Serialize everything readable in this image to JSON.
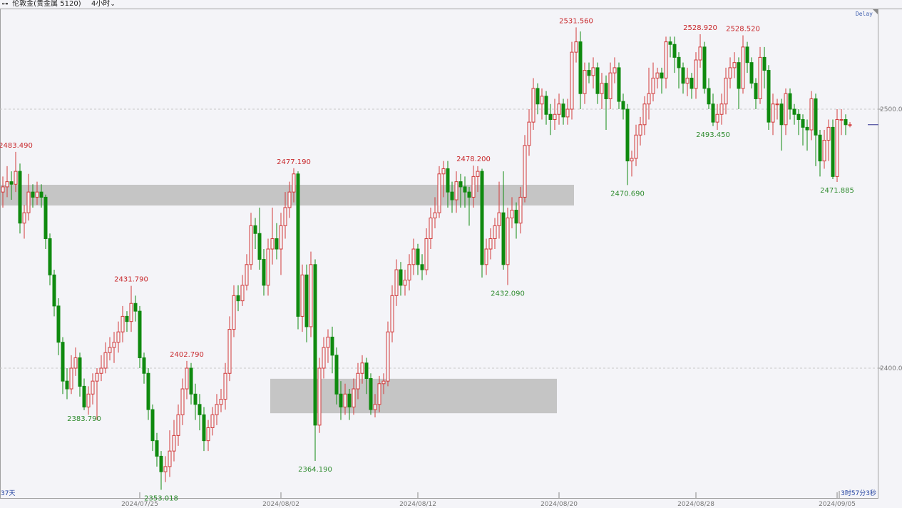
{
  "header": {
    "link_icon": "link-icon",
    "title": "伦敦金(贵金属 5120)",
    "timeframe": "4小时",
    "dropdown_icon": "chevron-down-icon"
  },
  "delay_label": "Delay",
  "days_label": "37天",
  "countdown": "3时57分3秒",
  "colors": {
    "up": "#d23a3a",
    "down": "#0f8a0f",
    "zone": "#c2c2c2",
    "grid": "#c8c8c8",
    "current_price_marker": "#2b2b8c"
  },
  "chart_data": {
    "type": "candlestick",
    "title": "",
    "ylim": [
      2345,
      2535
    ],
    "yticks": [
      {
        "value": 2500,
        "label": "2500.00"
      },
      {
        "value": 2400,
        "label": "2400.00"
      }
    ],
    "grid": "horizontal dashed at y ticks",
    "xticks": [
      {
        "index": 32,
        "label": "2024/07/25"
      },
      {
        "index": 65,
        "label": "2024/08/02"
      },
      {
        "index": 97,
        "label": "2024/08/12"
      },
      {
        "index": 130,
        "label": "2024/08/20"
      },
      {
        "index": 162,
        "label": "2024/08/28"
      },
      {
        "index": 195,
        "label": "2024/09/05"
      }
    ],
    "ohlc": [
      [
        2468,
        2474,
        2462,
        2470
      ],
      [
        2470,
        2478,
        2466,
        2472
      ],
      [
        2472,
        2476,
        2465,
        2471
      ],
      [
        2471,
        2483.49,
        2468,
        2476
      ],
      [
        2476,
        2479,
        2452,
        2456
      ],
      [
        2456,
        2463,
        2450,
        2460
      ],
      [
        2460,
        2475,
        2457,
        2468
      ],
      [
        2468,
        2471,
        2462,
        2466
      ],
      [
        2466,
        2472,
        2463,
        2468
      ],
      [
        2468,
        2471,
        2462,
        2466
      ],
      [
        2466,
        2467,
        2446,
        2450
      ],
      [
        2450,
        2452,
        2432,
        2436
      ],
      [
        2436,
        2438,
        2420,
        2424
      ],
      [
        2424,
        2427,
        2405,
        2410
      ],
      [
        2410,
        2412,
        2390,
        2395
      ],
      [
        2395,
        2400,
        2388,
        2392
      ],
      [
        2392,
        2405,
        2390,
        2400
      ],
      [
        2400,
        2408,
        2397,
        2404
      ],
      [
        2404,
        2406,
        2389,
        2393
      ],
      [
        2393,
        2396,
        2383.79,
        2385
      ],
      [
        2385,
        2393,
        2382,
        2390
      ],
      [
        2390,
        2398,
        2386,
        2395
      ],
      [
        2395,
        2400,
        2380,
        2398
      ],
      [
        2398,
        2405,
        2395,
        2400
      ],
      [
        2400,
        2410,
        2398,
        2406
      ],
      [
        2406,
        2412,
        2403,
        2408
      ],
      [
        2408,
        2414,
        2402,
        2410
      ],
      [
        2410,
        2418,
        2406,
        2414
      ],
      [
        2414,
        2424,
        2410,
        2420
      ],
      [
        2420,
        2422,
        2414,
        2418
      ],
      [
        2418,
        2431.79,
        2414,
        2425
      ],
      [
        2425,
        2428,
        2418,
        2422
      ],
      [
        2422,
        2424,
        2400,
        2404
      ],
      [
        2404,
        2406,
        2394,
        2398
      ],
      [
        2398,
        2400,
        2380,
        2384
      ],
      [
        2384,
        2386,
        2368,
        2372
      ],
      [
        2372,
        2375,
        2362,
        2366
      ],
      [
        2366,
        2368,
        2353.018,
        2360
      ],
      [
        2360,
        2366,
        2356,
        2362
      ],
      [
        2362,
        2376,
        2358,
        2368
      ],
      [
        2368,
        2380,
        2364,
        2374
      ],
      [
        2374,
        2386,
        2370,
        2382
      ],
      [
        2382,
        2396,
        2378,
        2392
      ],
      [
        2392,
        2402.79,
        2388,
        2400
      ],
      [
        2400,
        2402,
        2386,
        2390
      ],
      [
        2390,
        2394,
        2380,
        2386
      ],
      [
        2386,
        2390,
        2376,
        2382
      ],
      [
        2382,
        2385,
        2368,
        2372
      ],
      [
        2372,
        2380,
        2368,
        2377
      ],
      [
        2377,
        2385,
        2374,
        2382
      ],
      [
        2382,
        2390,
        2378,
        2386
      ],
      [
        2386,
        2392,
        2383,
        2388
      ],
      [
        2388,
        2402,
        2384,
        2398
      ],
      [
        2398,
        2420,
        2395,
        2415
      ],
      [
        2415,
        2432,
        2412,
        2428
      ],
      [
        2428,
        2432,
        2422,
        2426
      ],
      [
        2426,
        2436,
        2424,
        2432
      ],
      [
        2432,
        2444,
        2430,
        2440
      ],
      [
        2440,
        2460,
        2438,
        2455
      ],
      [
        2455,
        2458,
        2446,
        2452
      ],
      [
        2452,
        2462,
        2438,
        2442
      ],
      [
        2442,
        2446,
        2428,
        2432
      ],
      [
        2432,
        2450,
        2428,
        2446
      ],
      [
        2446,
        2462,
        2440,
        2450
      ],
      [
        2450,
        2456,
        2442,
        2446
      ],
      [
        2446,
        2460,
        2436,
        2455
      ],
      [
        2455,
        2468,
        2450,
        2462
      ],
      [
        2462,
        2472,
        2458,
        2468
      ],
      [
        2468,
        2477.19,
        2464,
        2475
      ],
      [
        2475,
        2476,
        2415,
        2420
      ],
      [
        2420,
        2440,
        2414,
        2436
      ],
      [
        2436,
        2440,
        2410,
        2416
      ],
      [
        2416,
        2445,
        2412,
        2440
      ],
      [
        2440,
        2442,
        2364.19,
        2378
      ],
      [
        2378,
        2404,
        2375,
        2400
      ],
      [
        2400,
        2412,
        2396,
        2408
      ],
      [
        2408,
        2415,
        2402,
        2412
      ],
      [
        2412,
        2416,
        2398,
        2405
      ],
      [
        2405,
        2408,
        2386,
        2390
      ],
      [
        2390,
        2395,
        2380,
        2385
      ],
      [
        2385,
        2394,
        2382,
        2390
      ],
      [
        2390,
        2392,
        2380,
        2385
      ],
      [
        2385,
        2396,
        2382,
        2392
      ],
      [
        2392,
        2402,
        2388,
        2398
      ],
      [
        2398,
        2405,
        2394,
        2402
      ],
      [
        2402,
        2404,
        2390,
        2396
      ],
      [
        2396,
        2398,
        2382,
        2384
      ],
      [
        2384,
        2390,
        2381,
        2386
      ],
      [
        2386,
        2397,
        2383,
        2394
      ],
      [
        2394,
        2398,
        2390,
        2395
      ],
      [
        2395,
        2418,
        2393,
        2414
      ],
      [
        2414,
        2432,
        2410,
        2428
      ],
      [
        2428,
        2442,
        2424,
        2438
      ],
      [
        2438,
        2441,
        2428,
        2432
      ],
      [
        2432,
        2438,
        2428,
        2434
      ],
      [
        2434,
        2444,
        2430,
        2440
      ],
      [
        2440,
        2450,
        2436,
        2446
      ],
      [
        2446,
        2448,
        2436,
        2440
      ],
      [
        2440,
        2444,
        2434,
        2438
      ],
      [
        2438,
        2454,
        2436,
        2450
      ],
      [
        2450,
        2462,
        2446,
        2458
      ],
      [
        2458,
        2466,
        2454,
        2460
      ],
      [
        2460,
        2478,
        2458,
        2475
      ],
      [
        2475,
        2480,
        2466,
        2477
      ],
      [
        2477,
        2480,
        2462,
        2468
      ],
      [
        2468,
        2472,
        2460,
        2465
      ],
      [
        2465,
        2476,
        2460,
        2472
      ],
      [
        2472,
        2475,
        2462,
        2470
      ],
      [
        2470,
        2474,
        2462,
        2468
      ],
      [
        2468,
        2470,
        2455,
        2466
      ],
      [
        2466,
        2478.2,
        2462,
        2474
      ],
      [
        2474,
        2478,
        2468,
        2476
      ],
      [
        2476,
        2477,
        2435,
        2440
      ],
      [
        2440,
        2450,
        2436,
        2446
      ],
      [
        2446,
        2454,
        2442,
        2450
      ],
      [
        2450,
        2458,
        2446,
        2455
      ],
      [
        2455,
        2472,
        2450,
        2460
      ],
      [
        2460,
        2476,
        2438,
        2440
      ],
      [
        2440,
        2462,
        2432.09,
        2458
      ],
      [
        2458,
        2466,
        2454,
        2461
      ],
      [
        2461,
        2464,
        2450,
        2456
      ],
      [
        2456,
        2470,
        2452,
        2466
      ],
      [
        2466,
        2490,
        2464,
        2486
      ],
      [
        2486,
        2500,
        2482,
        2495
      ],
      [
        2495,
        2512,
        2492,
        2508
      ],
      [
        2508,
        2510,
        2498,
        2502
      ],
      [
        2502,
        2508,
        2496,
        2505
      ],
      [
        2505,
        2507,
        2494,
        2498
      ],
      [
        2498,
        2502,
        2490,
        2496
      ],
      [
        2496,
        2504,
        2492,
        2498
      ],
      [
        2498,
        2506,
        2494,
        2502
      ],
      [
        2502,
        2504,
        2494,
        2497
      ],
      [
        2497,
        2504,
        2494,
        2500
      ],
      [
        2500,
        2526,
        2496,
        2522
      ],
      [
        2522,
        2531.56,
        2518,
        2526
      ],
      [
        2526,
        2530,
        2500,
        2506
      ],
      [
        2506,
        2518,
        2502,
        2515
      ],
      [
        2515,
        2518,
        2510,
        2513
      ],
      [
        2513,
        2520,
        2508,
        2516
      ],
      [
        2516,
        2518,
        2502,
        2506
      ],
      [
        2506,
        2514,
        2500,
        2510
      ],
      [
        2510,
        2513,
        2492,
        2504
      ],
      [
        2504,
        2518,
        2500,
        2514
      ],
      [
        2514,
        2520,
        2510,
        2516
      ],
      [
        2516,
        2518,
        2500,
        2503
      ],
      [
        2503,
        2506,
        2496,
        2500
      ],
      [
        2500,
        2502,
        2470.69,
        2480
      ],
      [
        2480,
        2484,
        2474,
        2481
      ],
      [
        2481,
        2494,
        2478,
        2490
      ],
      [
        2490,
        2497,
        2486,
        2494
      ],
      [
        2494,
        2505,
        2490,
        2502
      ],
      [
        2502,
        2516,
        2496,
        2506
      ],
      [
        2506,
        2518,
        2503,
        2512
      ],
      [
        2512,
        2516,
        2508,
        2514
      ],
      [
        2514,
        2516,
        2506,
        2512
      ],
      [
        2512,
        2528,
        2508,
        2526
      ],
      [
        2526,
        2528,
        2520,
        2525
      ],
      [
        2525,
        2528,
        2514,
        2520
      ],
      [
        2520,
        2522,
        2508,
        2516
      ],
      [
        2516,
        2518,
        2506,
        2510
      ],
      [
        2510,
        2516,
        2505,
        2512
      ],
      [
        2512,
        2514,
        2504,
        2508
      ],
      [
        2508,
        2522,
        2504,
        2519
      ],
      [
        2519,
        2528.92,
        2516,
        2524
      ],
      [
        2524,
        2526,
        2506,
        2508
      ],
      [
        2508,
        2512,
        2500,
        2502
      ],
      [
        2502,
        2506,
        2493.45,
        2495
      ],
      [
        2495,
        2502,
        2492,
        2498
      ],
      [
        2498,
        2506,
        2494,
        2502
      ],
      [
        2502,
        2516,
        2498,
        2512
      ],
      [
        2512,
        2520,
        2508,
        2516
      ],
      [
        2516,
        2522,
        2512,
        2518
      ],
      [
        2518,
        2520,
        2500,
        2508
      ],
      [
        2508,
        2528.52,
        2506,
        2524
      ],
      [
        2524,
        2526,
        2514,
        2518
      ],
      [
        2518,
        2520,
        2508,
        2510
      ],
      [
        2510,
        2512,
        2500,
        2504
      ],
      [
        2504,
        2524,
        2502,
        2520
      ],
      [
        2520,
        2524,
        2508,
        2515
      ],
      [
        2515,
        2517,
        2492,
        2495
      ],
      [
        2495,
        2506,
        2490,
        2502
      ],
      [
        2502,
        2504,
        2496,
        2502
      ],
      [
        2502,
        2504,
        2484,
        2494
      ],
      [
        2494,
        2508,
        2490,
        2506
      ],
      [
        2506,
        2508,
        2496,
        2500
      ],
      [
        2500,
        2502,
        2494,
        2498
      ],
      [
        2498,
        2500,
        2490,
        2496
      ],
      [
        2496,
        2498,
        2486,
        2493
      ],
      [
        2493,
        2496,
        2484,
        2492
      ],
      [
        2492,
        2507,
        2488,
        2504
      ],
      [
        2504,
        2506,
        2478,
        2490
      ],
      [
        2490,
        2492,
        2474,
        2480
      ],
      [
        2480,
        2492,
        2477,
        2488
      ],
      [
        2488,
        2496,
        2480,
        2493
      ],
      [
        2493,
        2496,
        2473,
        2474
      ],
      [
        2474,
        2500,
        2471.885,
        2496
      ],
      [
        2496,
        2500,
        2490,
        2496
      ],
      [
        2496,
        2498,
        2490,
        2494
      ],
      [
        2494,
        2495,
        2493,
        2494
      ]
    ],
    "annotations": [
      {
        "index": 3,
        "label": "2483.490",
        "kind": "high"
      },
      {
        "index": 30,
        "label": "2431.790",
        "kind": "high"
      },
      {
        "index": 19,
        "label": "2383.790",
        "kind": "low"
      },
      {
        "index": 37,
        "label": "2353.018",
        "kind": "low"
      },
      {
        "index": 43,
        "label": "2402.790",
        "kind": "high"
      },
      {
        "index": 68,
        "label": "2477.190",
        "kind": "high"
      },
      {
        "index": 73,
        "label": "2364.190",
        "kind": "low"
      },
      {
        "index": 110,
        "label": "2478.200",
        "kind": "high"
      },
      {
        "index": 118,
        "label": "2432.090",
        "kind": "low"
      },
      {
        "index": 134,
        "label": "2531.560",
        "kind": "high"
      },
      {
        "index": 146,
        "label": "2470.690",
        "kind": "low"
      },
      {
        "index": 163,
        "label": "2528.920",
        "kind": "high"
      },
      {
        "index": 166,
        "label": "2493.450",
        "kind": "low"
      },
      {
        "index": 173,
        "label": "2528.520",
        "kind": "high"
      },
      {
        "index": 195,
        "label": "2471.885",
        "kind": "low"
      }
    ],
    "zones": [
      {
        "from_index": 0,
        "to_index": 133,
        "low": 2462.8,
        "high": 2470.8
      },
      {
        "from_index": 63,
        "to_index": 129,
        "low": 2382.6,
        "high": 2395.9
      }
    ],
    "current_price": 2494
  }
}
